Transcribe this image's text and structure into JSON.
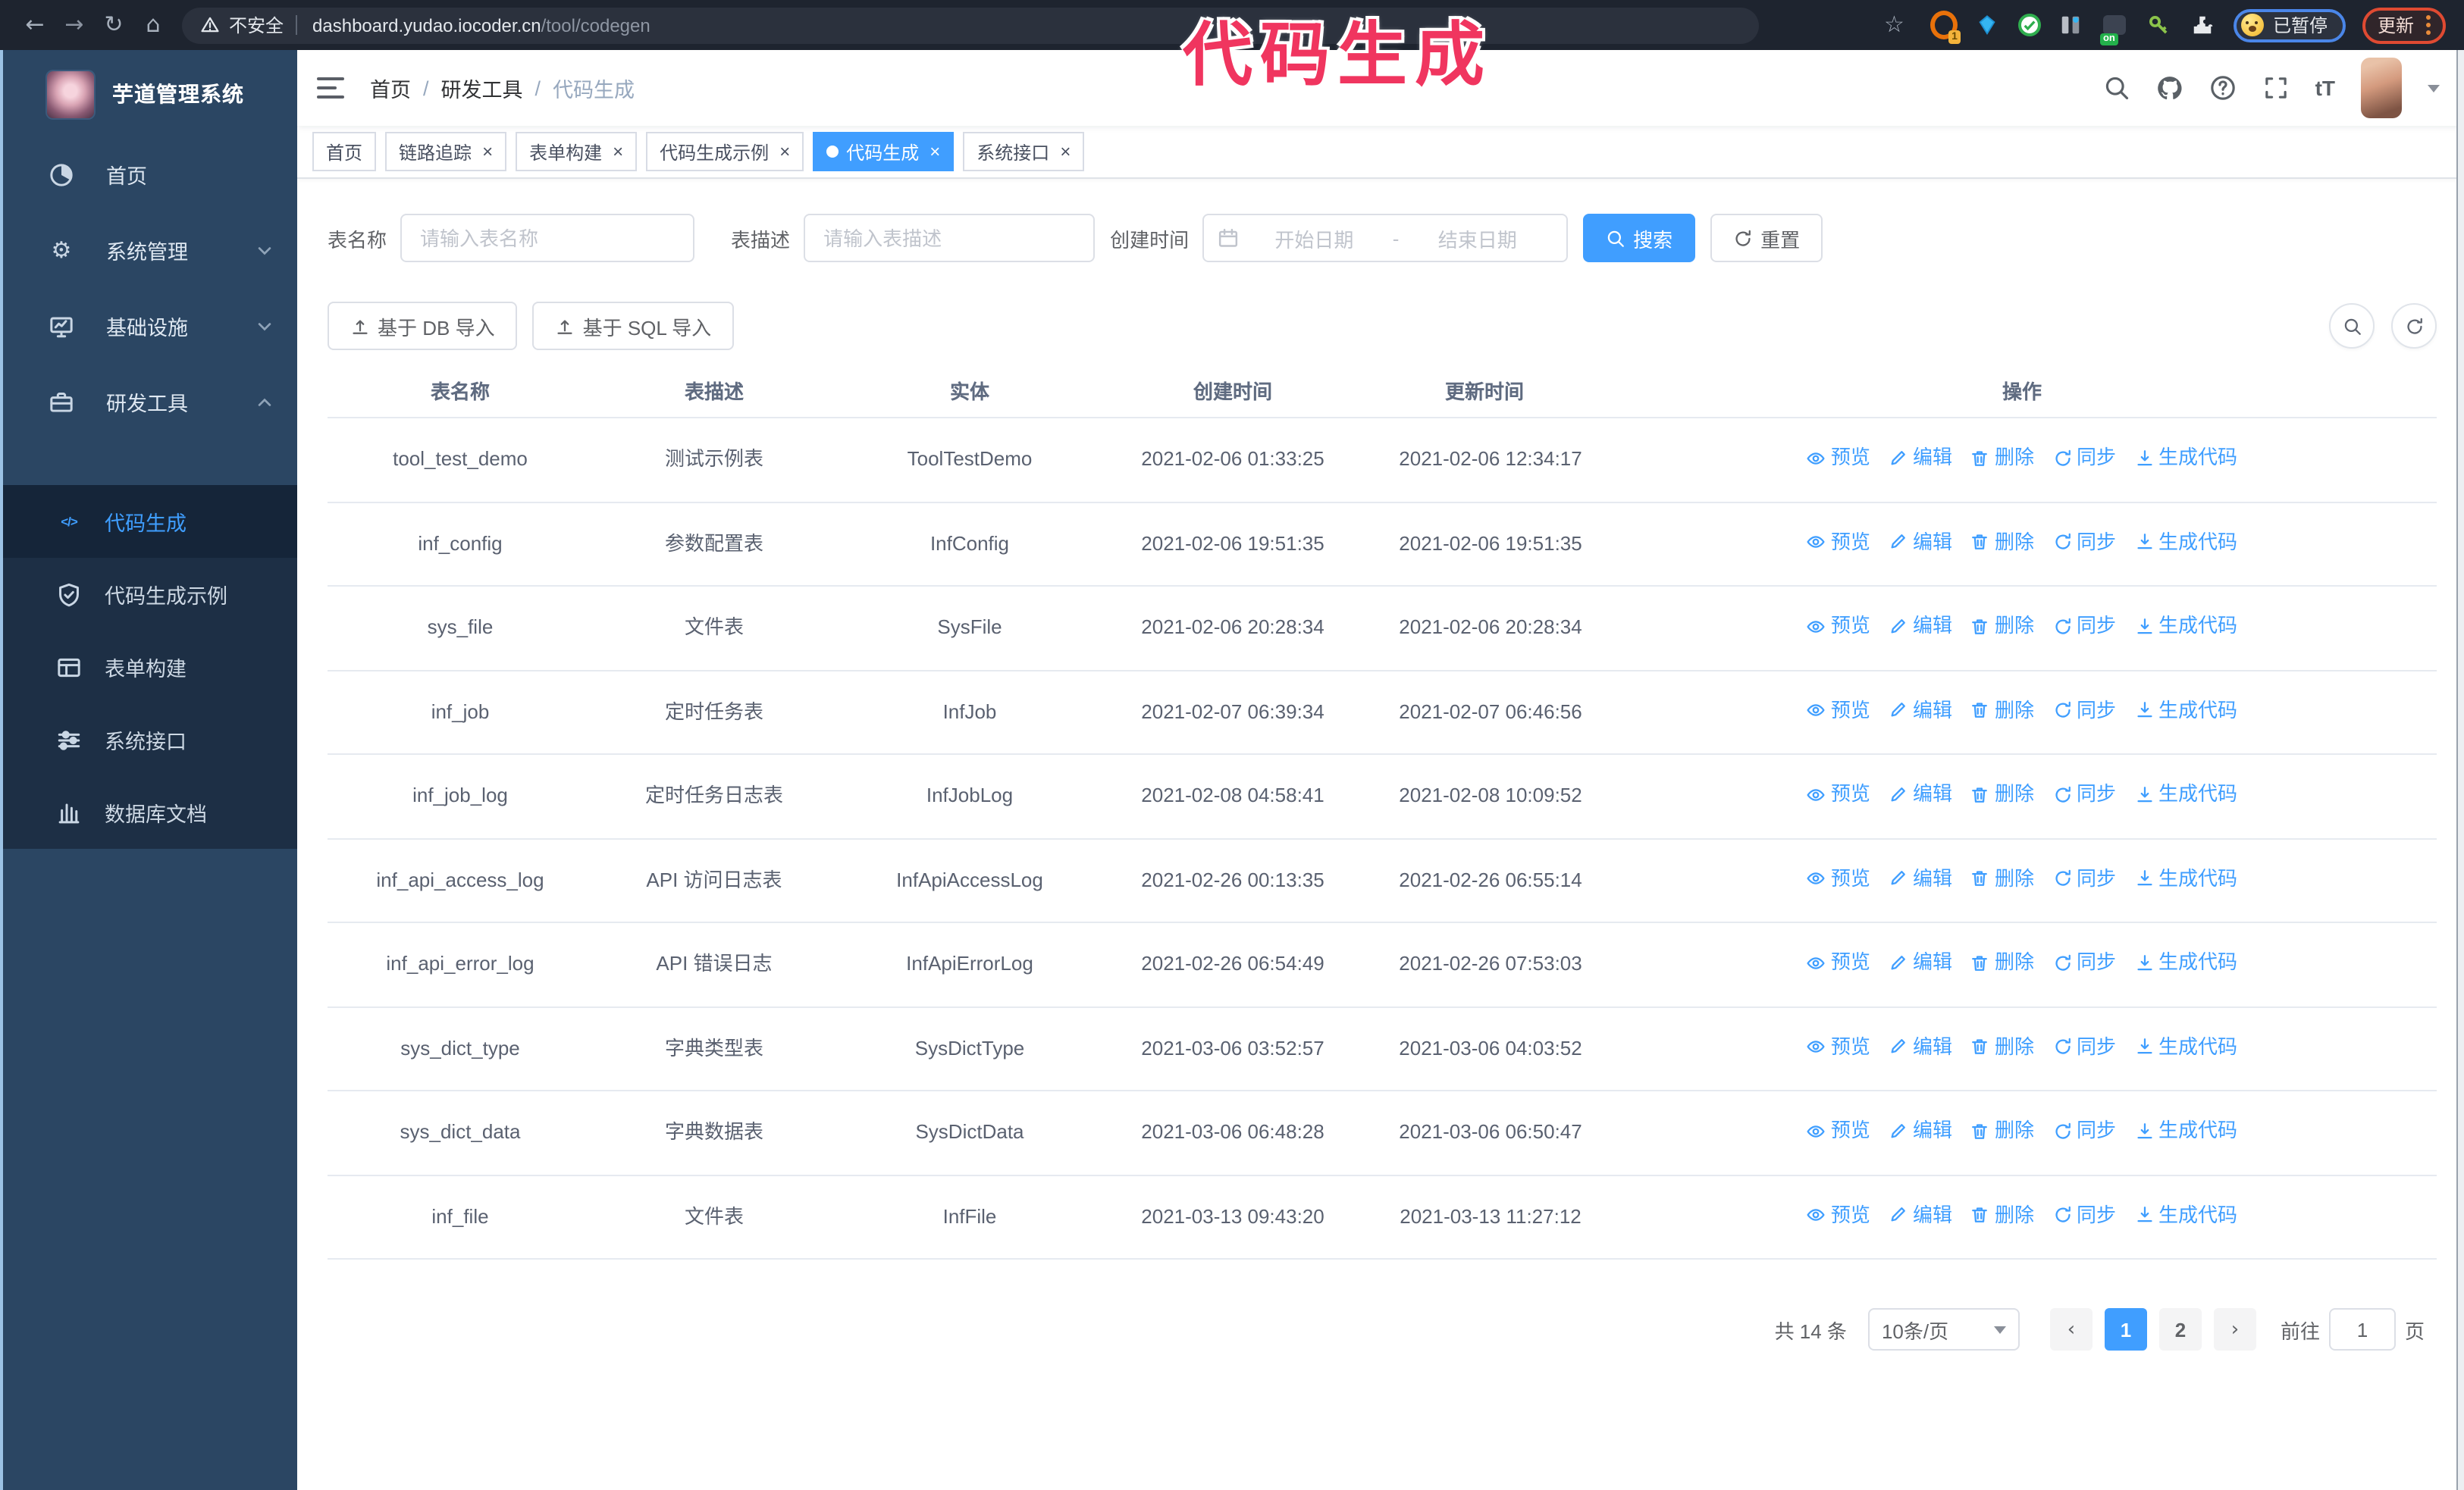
{
  "colors": {
    "accent": "#409eff",
    "annotation": "#f0355f",
    "sidebar_bg": "#2b4663",
    "submenu_bg": "#1d2f45",
    "toolbar_bg": "#1e242f"
  },
  "annotation": {
    "text": "代码生成"
  },
  "browser": {
    "security_label": "不安全",
    "url_host": "dashboard.yudao.iocoder.cn",
    "url_path": "/tool/codegen",
    "extension_badge": "1",
    "on_badge_label": "on",
    "paused_label": "已暂停",
    "update_label": "更新"
  },
  "sidebar": {
    "title": "芋道管理系统",
    "items": [
      {
        "id": "home",
        "label": "首页",
        "icon": "dashboard-icon",
        "arrow": ""
      },
      {
        "id": "system-management",
        "label": "系统管理",
        "icon": "gear-icon",
        "arrow": "down"
      },
      {
        "id": "infrastructure",
        "label": "基础设施",
        "icon": "monitor-icon",
        "arrow": "down"
      },
      {
        "id": "dev-tools",
        "label": "研发工具",
        "icon": "toolbox-icon",
        "arrow": "up"
      }
    ],
    "subitems": [
      {
        "id": "codegen",
        "label": "代码生成",
        "icon": "code-icon",
        "active": true
      },
      {
        "id": "codegen-example",
        "label": "代码生成示例",
        "icon": "shield-check-icon",
        "active": false
      },
      {
        "id": "form-builder",
        "label": "表单构建",
        "icon": "form-icon",
        "active": false
      },
      {
        "id": "system-api",
        "label": "系统接口",
        "icon": "sliders-icon",
        "active": false
      },
      {
        "id": "db-doc",
        "label": "数据库文档",
        "icon": "columns-icon",
        "active": false
      }
    ]
  },
  "header": {
    "breadcrumb": [
      "首页",
      "研发工具",
      "代码生成"
    ]
  },
  "tabs": [
    {
      "id": "home",
      "label": "首页",
      "closable": false,
      "active": false
    },
    {
      "id": "tracing",
      "label": "链路追踪",
      "closable": true,
      "active": false
    },
    {
      "id": "form-builder",
      "label": "表单构建",
      "closable": true,
      "active": false
    },
    {
      "id": "codegen-example",
      "label": "代码生成示例",
      "closable": true,
      "active": false
    },
    {
      "id": "codegen",
      "label": "代码生成",
      "closable": true,
      "active": true
    },
    {
      "id": "system-api",
      "label": "系统接口",
      "closable": true,
      "active": false
    }
  ],
  "filters": {
    "name_label": "表名称",
    "name_placeholder": "请输入表名称",
    "desc_label": "表描述",
    "desc_placeholder": "请输入表描述",
    "time_label": "创建时间",
    "start_placeholder": "开始日期",
    "range_separator": "-",
    "end_placeholder": "结束日期",
    "search_label": "搜索",
    "reset_label": "重置"
  },
  "toolbar": {
    "import_db_label": "基于 DB 导入",
    "import_sql_label": "基于 SQL 导入"
  },
  "table": {
    "headers": [
      "表名称",
      "表描述",
      "实体",
      "创建时间",
      "更新时间",
      "操作"
    ],
    "ops": [
      {
        "id": "preview",
        "label": "预览",
        "icon": "eye-icon"
      },
      {
        "id": "edit",
        "label": "编辑",
        "icon": "edit-icon"
      },
      {
        "id": "delete",
        "label": "删除",
        "icon": "delete-icon"
      },
      {
        "id": "sync",
        "label": "同步",
        "icon": "sync-icon"
      },
      {
        "id": "generate",
        "label": "生成代码",
        "icon": "download-icon"
      }
    ],
    "rows": [
      {
        "name": "tool_test_demo",
        "desc": "测试示例表",
        "entity": "ToolTestDemo",
        "create_time": "2021-02-06 01:33:25",
        "update_time": "2021-02-06 12:34:17"
      },
      {
        "name": "inf_config",
        "desc": "参数配置表",
        "entity": "InfConfig",
        "create_time": "2021-02-06 19:51:35",
        "update_time": "2021-02-06 19:51:35"
      },
      {
        "name": "sys_file",
        "desc": "文件表",
        "entity": "SysFile",
        "create_time": "2021-02-06 20:28:34",
        "update_time": "2021-02-06 20:28:34"
      },
      {
        "name": "inf_job",
        "desc": "定时任务表",
        "entity": "InfJob",
        "create_time": "2021-02-07 06:39:34",
        "update_time": "2021-02-07 06:46:56"
      },
      {
        "name": "inf_job_log",
        "desc": "定时任务日志表",
        "entity": "InfJobLog",
        "create_time": "2021-02-08 04:58:41",
        "update_time": "2021-02-08 10:09:52"
      },
      {
        "name": "inf_api_access_log",
        "desc": "API 访问日志表",
        "entity": "InfApiAccessLog",
        "create_time": "2021-02-26 00:13:35",
        "update_time": "2021-02-26 06:55:14"
      },
      {
        "name": "inf_api_error_log",
        "desc": "API 错误日志",
        "entity": "InfApiErrorLog",
        "create_time": "2021-02-26 06:54:49",
        "update_time": "2021-02-26 07:53:03"
      },
      {
        "name": "sys_dict_type",
        "desc": "字典类型表",
        "entity": "SysDictType",
        "create_time": "2021-03-06 03:52:57",
        "update_time": "2021-03-06 04:03:52"
      },
      {
        "name": "sys_dict_data",
        "desc": "字典数据表",
        "entity": "SysDictData",
        "create_time": "2021-03-06 06:48:28",
        "update_time": "2021-03-06 06:50:47"
      },
      {
        "name": "inf_file",
        "desc": "文件表",
        "entity": "InfFile",
        "create_time": "2021-03-13 09:43:20",
        "update_time": "2021-03-13 11:27:12"
      }
    ]
  },
  "pagination": {
    "total_label": "共 14 条",
    "page_size_label": "10条/页",
    "pages": [
      "1",
      "2"
    ],
    "current_page": "1",
    "goto_label": "前往",
    "goto_value": "1",
    "page_unit_label": "页"
  }
}
